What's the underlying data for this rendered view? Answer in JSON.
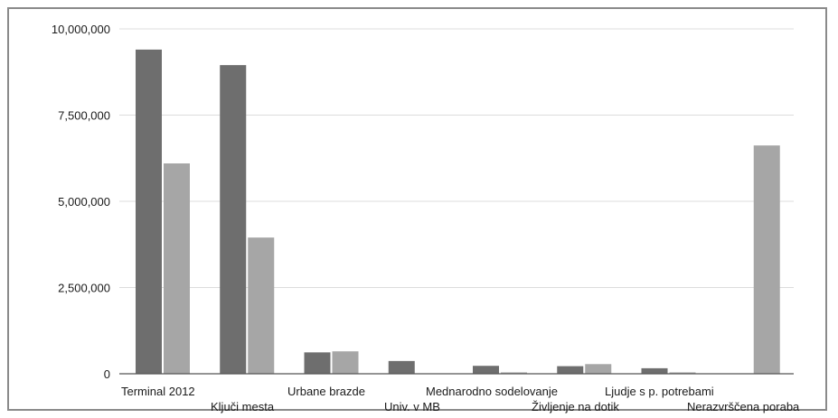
{
  "chart_data": {
    "type": "bar",
    "title": "",
    "xlabel": "",
    "ylabel": "",
    "ylim": [
      0,
      10000000
    ],
    "yticks": [
      0,
      2500000,
      5000000,
      7500000,
      10000000
    ],
    "ytick_labels": [
      "0",
      "2,500,000",
      "5,000,000",
      "7,500,000",
      "10,000,000"
    ],
    "grid": true,
    "legend": "none",
    "categories": [
      "Terminal 2012",
      "Ključi mesta",
      "Urbane brazde",
      "Univ. v MB",
      "Mednarodno sodelovanje",
      "Življenje na dotik",
      "Ljudje s p. potrebami",
      "Nerazvrščena poraba"
    ],
    "series": [
      {
        "color": "#6e6e6e",
        "values": [
          9400000,
          8950000,
          620000,
          370000,
          230000,
          220000,
          160000,
          0
        ]
      },
      {
        "color": "#a6a6a6",
        "values": [
          6100000,
          3950000,
          650000,
          0,
          40000,
          280000,
          40000,
          6620000
        ]
      }
    ]
  }
}
